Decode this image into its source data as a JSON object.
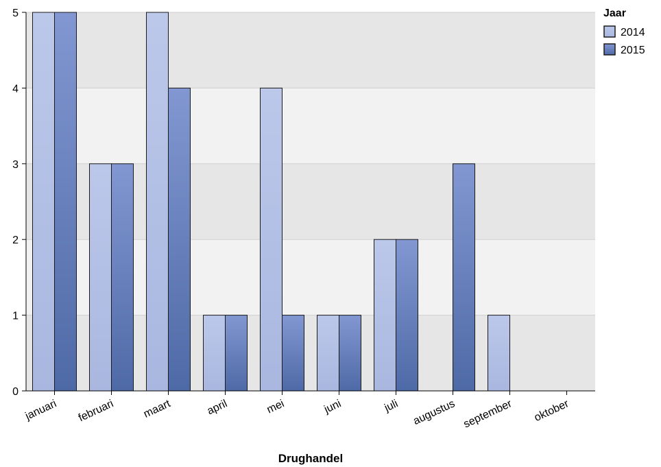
{
  "chart_data": {
    "type": "bar",
    "xlabel": "Drughandel",
    "ylabel": "",
    "ylim": [
      0,
      5
    ],
    "yticks": [
      "0",
      "1",
      "2",
      "3",
      "4",
      "5"
    ],
    "grid": true,
    "legend": {
      "title": "Jaar",
      "placement": "top-right"
    },
    "categories": [
      "januari",
      "februari",
      "maart",
      "april",
      "mei",
      "juni",
      "juli",
      "augustus",
      "september",
      "oktober"
    ],
    "series": [
      {
        "name": "2014",
        "color": "#b3c0e4",
        "values": [
          5,
          3,
          5,
          1,
          4,
          1,
          2,
          0,
          1,
          0
        ]
      },
      {
        "name": "2015",
        "color": "#6a82bd",
        "values": [
          5,
          3,
          4,
          1,
          1,
          1,
          2,
          3,
          0,
          0
        ]
      }
    ]
  }
}
